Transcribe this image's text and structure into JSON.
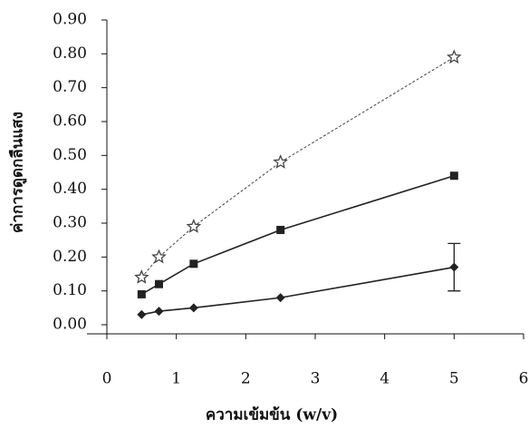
{
  "chart_data": {
    "type": "line",
    "x_label": "ความเข้มข้น (w/v)",
    "y_label": "ค่าการดูดกลืนแสง",
    "xlim": [
      0,
      6
    ],
    "xticks": [
      0,
      1,
      2,
      3,
      4,
      5,
      6
    ],
    "ylim": [
      0,
      0.9
    ],
    "yticks": [
      {
        "value": 0,
        "label": "0.00"
      },
      {
        "value": 0.1,
        "label": "0.10"
      },
      {
        "value": 0.2,
        "label": "0.20"
      },
      {
        "value": 0.3,
        "label": "0.30"
      },
      {
        "value": 0.4,
        "label": "0.40"
      },
      {
        "value": 0.5,
        "label": "0.50"
      },
      {
        "value": 0.6,
        "label": "0.60"
      },
      {
        "value": 0.7,
        "label": "0.70"
      },
      {
        "value": 0.8,
        "label": "0.80"
      },
      {
        "value": 0.9,
        "label": "0.90"
      }
    ],
    "x": [
      0.5,
      0.75,
      1.25,
      2.5,
      5
    ],
    "series": [
      {
        "color": "#222222",
        "marker": "diamond",
        "dash": false,
        "values": [
          0.03,
          0.04,
          0.05,
          0.08,
          0.17
        ],
        "errors": [
          null,
          null,
          null,
          null,
          0.07
        ]
      },
      {
        "color": "#222222",
        "marker": "square",
        "dash": false,
        "values": [
          0.09,
          0.12,
          0.18,
          0.28,
          0.44
        ]
      },
      {
        "color": "#444444",
        "marker": "star",
        "dash": true,
        "values": [
          0.14,
          0.2,
          0.29,
          0.48,
          0.79
        ]
      }
    ]
  }
}
